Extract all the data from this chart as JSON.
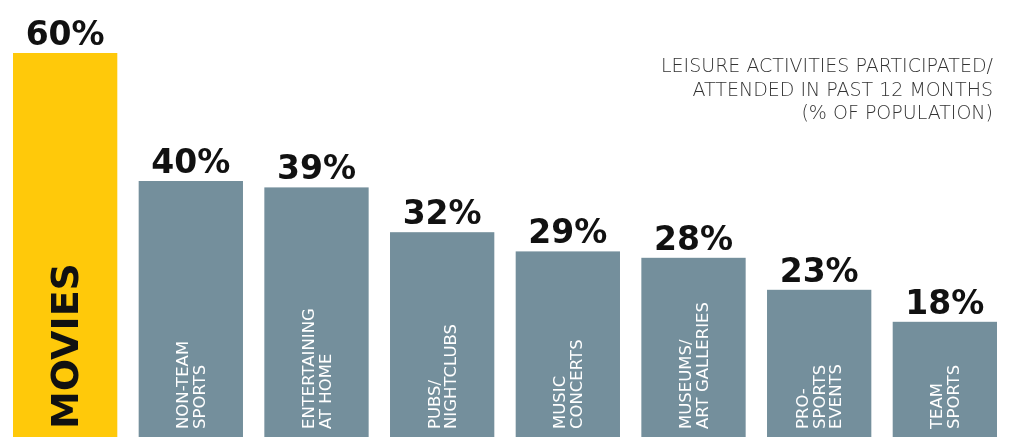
{
  "chart_data": {
    "type": "bar",
    "title": "LEISURE ACTIVITIES PARTICIPATED/\nATTENDED IN PAST 12 MONTHS\n(% OF POPULATION)",
    "categories": [
      "MOVIES",
      "NON-TEAM\nSPORTS",
      "ENTERTAINING\nAT HOME",
      "PUBS/\nNIGHTCLUBS",
      "MUSIC\nCONCERTS",
      "MUSEUMS/\nART GALLERIES",
      "PRO-\nSPORTS\nEVENTS",
      "TEAM\nSPORTS"
    ],
    "values": [
      60,
      40,
      39,
      32,
      29,
      28,
      23,
      18
    ],
    "value_labels": [
      "60%",
      "40%",
      "39%",
      "32%",
      "29%",
      "28%",
      "23%",
      "18%"
    ],
    "colors": [
      "#ffc90a",
      "#748f9c",
      "#748f9c",
      "#748f9c",
      "#748f9c",
      "#748f9c",
      "#748f9c",
      "#748f9c"
    ],
    "relative": false
  }
}
